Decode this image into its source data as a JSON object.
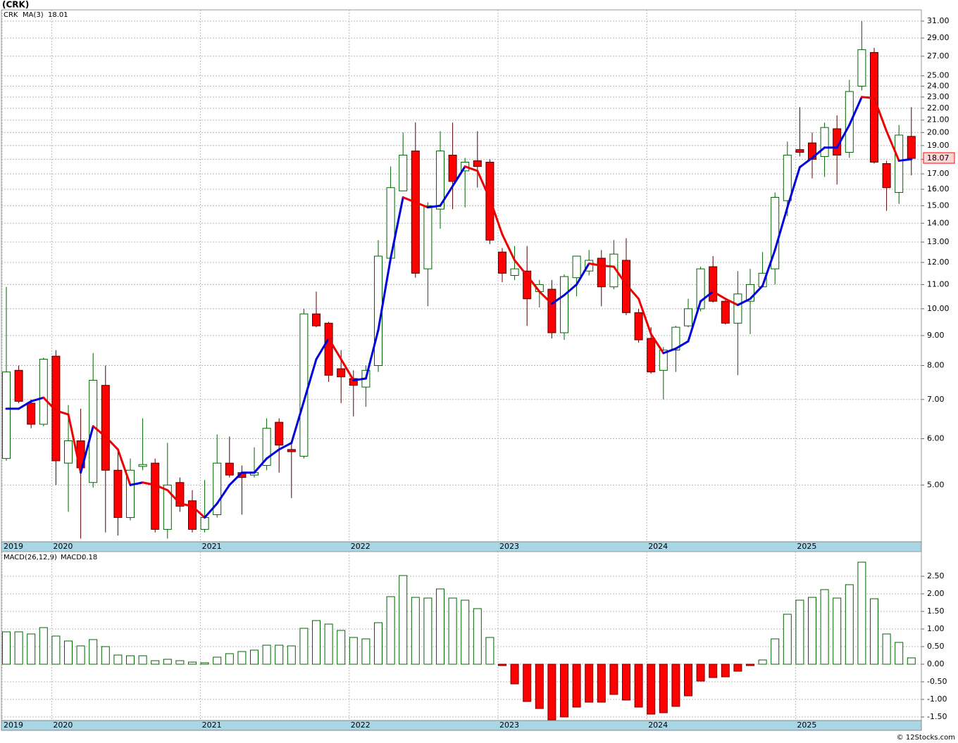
{
  "chart_data": [
    {
      "type": "candlestick",
      "title": "(CRK)",
      "log_scale": true,
      "grid": true,
      "categories": [
        "2019",
        null,
        null,
        null,
        "2020",
        null,
        null,
        null,
        null,
        null,
        null,
        null,
        null,
        null,
        null,
        null,
        "2021",
        null,
        null,
        null,
        null,
        null,
        null,
        null,
        null,
        null,
        null,
        null,
        "2022",
        null,
        null,
        null,
        null,
        null,
        null,
        null,
        null,
        null,
        null,
        null,
        "2023",
        null,
        null,
        null,
        null,
        null,
        null,
        null,
        null,
        null,
        null,
        null,
        "2024",
        null,
        null,
        null,
        null,
        null,
        null,
        null,
        null,
        null,
        null,
        null,
        "2025",
        null,
        null,
        null,
        null,
        null,
        null,
        null,
        null,
        null
      ],
      "series": [
        {
          "name": "CRK",
          "color": "#006400",
          "down_color": "#ff0000",
          "open": [
            5.55,
            7.85,
            6.9,
            6.35,
            8.3,
            5.45,
            5.95,
            5.05,
            7.4,
            5.3,
            4.4,
            5.38,
            5.45,
            4.2,
            5.05,
            4.7,
            4.2,
            4.45,
            5.45,
            5.25,
            5.2,
            5.4,
            6.4,
            5.75,
            5.6,
            9.8,
            9.45,
            7.9,
            7.6,
            7.35,
            8.0,
            12.2,
            15.9,
            18.6,
            11.7,
            14.8,
            18.3,
            17.2,
            17.9,
            17.8,
            12.5,
            11.4,
            11.6,
            10.7,
            10.8,
            9.1,
            11.3,
            11.6,
            12.2,
            10.9,
            12.1,
            9.85,
            8.9,
            7.85,
            8.5,
            9.35,
            10.0,
            11.8,
            10.3,
            9.45,
            10.3,
            10.9,
            11.7,
            15.3,
            18.7,
            19.2,
            18.2,
            20.3,
            18.5,
            24.0,
            27.4,
            17.7,
            15.8,
            19.7
          ],
          "high": [
            10.9,
            8.0,
            7.0,
            8.25,
            8.5,
            6.85,
            6.75,
            8.4,
            8.0,
            5.75,
            5.55,
            6.5,
            5.55,
            5.9,
            5.15,
            4.9,
            5.1,
            6.1,
            6.05,
            5.4,
            5.8,
            6.5,
            6.5,
            5.9,
            10.0,
            10.7,
            9.5,
            8.5,
            7.85,
            8.0,
            13.1,
            17.5,
            20.0,
            20.8,
            15.2,
            20.1,
            20.8,
            18.1,
            20.1,
            18.0,
            12.7,
            12.8,
            12.8,
            11.2,
            11.2,
            11.45,
            12.3,
            12.6,
            12.6,
            13.1,
            13.2,
            10.0,
            9.3,
            8.6,
            9.35,
            10.4,
            11.8,
            12.3,
            10.35,
            11.6,
            11.7,
            12.5,
            15.8,
            19.3,
            22.1,
            20.0,
            20.8,
            21.4,
            24.6,
            31.0,
            27.9,
            17.9,
            20.6,
            22.1
          ],
          "low": [
            5.5,
            6.9,
            6.25,
            6.3,
            5.0,
            4.5,
            4.05,
            4.95,
            4.15,
            4.1,
            4.35,
            5.3,
            4.15,
            4.05,
            4.5,
            4.15,
            4.15,
            4.4,
            5.15,
            4.45,
            5.15,
            5.3,
            5.25,
            4.75,
            5.55,
            9.3,
            7.5,
            6.9,
            6.55,
            6.8,
            7.8,
            12.2,
            15.9,
            11.3,
            10.1,
            13.7,
            14.8,
            14.9,
            16.1,
            12.9,
            11.1,
            11.2,
            9.35,
            10.05,
            8.9,
            8.85,
            10.5,
            11.4,
            10.1,
            10.8,
            9.75,
            8.75,
            7.75,
            7.0,
            7.8,
            9.3,
            9.9,
            10.25,
            9.4,
            7.7,
            9.05,
            10.9,
            11.0,
            14.4,
            18.2,
            16.7,
            16.8,
            16.3,
            18.1,
            23.6,
            17.7,
            14.7,
            15.1,
            16.9
          ],
          "close": [
            7.8,
            6.95,
            6.35,
            8.2,
            5.5,
            5.95,
            5.35,
            7.55,
            5.3,
            4.4,
            5.3,
            5.42,
            4.2,
            5.0,
            4.6,
            4.2,
            4.4,
            5.45,
            5.2,
            5.15,
            5.25,
            6.25,
            5.85,
            5.7,
            9.8,
            9.35,
            7.7,
            7.65,
            7.4,
            7.85,
            12.3,
            16.1,
            18.3,
            11.5,
            15.0,
            18.6,
            16.5,
            17.8,
            17.5,
            13.1,
            11.5,
            11.7,
            10.4,
            11.0,
            9.1,
            11.35,
            12.3,
            12.1,
            10.9,
            12.4,
            9.85,
            8.85,
            7.8,
            8.5,
            9.3,
            10.0,
            11.7,
            10.3,
            9.45,
            10.6,
            11.0,
            11.5,
            15.5,
            18.3,
            18.5,
            18.0,
            20.4,
            18.3,
            23.5,
            27.7,
            17.8,
            16.1,
            19.8,
            18.07
          ]
        },
        {
          "name": "MA(3)",
          "type": "line",
          "color": "#0000dd",
          "down_color": "#ee0000",
          "values": [
            6.75,
            6.75,
            6.95,
            7.05,
            6.7,
            6.6,
            5.25,
            6.3,
            6.05,
            5.75,
            5.0,
            5.05,
            5.0,
            4.9,
            4.65,
            4.6,
            4.4,
            4.65,
            5.0,
            5.25,
            5.25,
            5.55,
            5.75,
            5.9,
            6.95,
            8.2,
            8.9,
            8.2,
            7.55,
            7.6,
            9.2,
            12.2,
            15.5,
            15.2,
            14.9,
            15.0,
            16.2,
            17.5,
            17.2,
            15.4,
            13.4,
            12.1,
            11.4,
            10.7,
            10.2,
            10.55,
            11.0,
            11.95,
            11.85,
            11.8,
            11.0,
            10.4,
            9.05,
            8.4,
            8.55,
            8.8,
            10.3,
            10.7,
            10.4,
            10.15,
            10.4,
            10.95,
            12.6,
            14.9,
            17.45,
            18.1,
            18.85,
            18.85,
            20.6,
            23.0,
            22.9,
            20.1,
            17.9,
            18.01
          ]
        }
      ],
      "ylim": [
        4.0,
        32.4
      ],
      "yticks": [
        {
          "value": 5,
          "label": "5.00"
        },
        {
          "value": 6,
          "label": "6.00"
        },
        {
          "value": 7,
          "label": "7.00"
        },
        {
          "value": 8,
          "label": "8.00"
        },
        {
          "value": 9,
          "label": "9.00"
        },
        {
          "value": 10,
          "label": "10.00"
        },
        {
          "value": 11,
          "label": "11.00"
        },
        {
          "value": 12,
          "label": "12.00"
        },
        {
          "value": 13,
          "label": "13.00"
        },
        {
          "value": 14,
          "label": "14.00"
        },
        {
          "value": 15,
          "label": "15.00"
        },
        {
          "value": 16,
          "label": "16.00"
        },
        {
          "value": 17,
          "label": "17.00"
        },
        {
          "value": 18,
          "label": "18.00"
        },
        {
          "value": 19,
          "label": "19.00"
        },
        {
          "value": 20,
          "label": "20.00"
        },
        {
          "value": 21,
          "label": "21.00"
        },
        {
          "value": 22,
          "label": "22.00"
        },
        {
          "value": 23,
          "label": "23.00"
        },
        {
          "value": 24,
          "label": "24.00"
        },
        {
          "value": 25,
          "label": "25.00"
        },
        {
          "value": 27,
          "label": "27.00"
        },
        {
          "value": 29,
          "label": "29.00"
        },
        {
          "value": 31,
          "label": "31.00"
        }
      ]
    },
    {
      "type": "bar",
      "title": "MACD(26,12,9)",
      "value_legend": "MACD:",
      "grid": true,
      "series": [
        {
          "color": "#006400",
          "down_color": "#ff0000",
          "legend_color": "#0000dd",
          "values": [
            0.92,
            0.92,
            0.86,
            1.04,
            0.8,
            0.66,
            0.52,
            0.7,
            0.5,
            0.26,
            0.24,
            0.24,
            0.1,
            0.14,
            0.1,
            0.06,
            0.04,
            0.2,
            0.3,
            0.36,
            0.4,
            0.54,
            0.54,
            0.52,
            1.02,
            1.24,
            1.14,
            0.96,
            0.76,
            0.72,
            1.18,
            1.92,
            2.52,
            1.9,
            1.88,
            2.14,
            1.88,
            1.82,
            1.58,
            0.76,
            -0.04,
            -0.56,
            -1.06,
            -1.26,
            -1.58,
            -1.5,
            -1.22,
            -1.08,
            -1.08,
            -0.86,
            -1.02,
            -1.22,
            -1.42,
            -1.38,
            -1.2,
            -0.9,
            -0.48,
            -0.38,
            -0.36,
            -0.2,
            -0.04,
            0.12,
            0.72,
            1.42,
            1.82,
            1.9,
            2.12,
            1.88,
            2.26,
            2.9,
            1.86,
            0.86,
            0.62,
            0.18
          ]
        }
      ],
      "ylim": [
        -1.6,
        3.2
      ],
      "yticks": [
        {
          "value": -1.5,
          "label": "-1.50"
        },
        {
          "value": -1,
          "label": "-1.00"
        },
        {
          "value": -0.5,
          "label": "-0.50"
        },
        {
          "value": 0,
          "label": "0.00"
        },
        {
          "value": 0.5,
          "label": "0.50"
        },
        {
          "value": 1,
          "label": "1.00"
        },
        {
          "value": 1.5,
          "label": "1.50"
        },
        {
          "value": 2,
          "label": "2.00"
        },
        {
          "value": 2.5,
          "label": "2.50"
        }
      ]
    }
  ],
  "source": "© 12Stocks.com"
}
